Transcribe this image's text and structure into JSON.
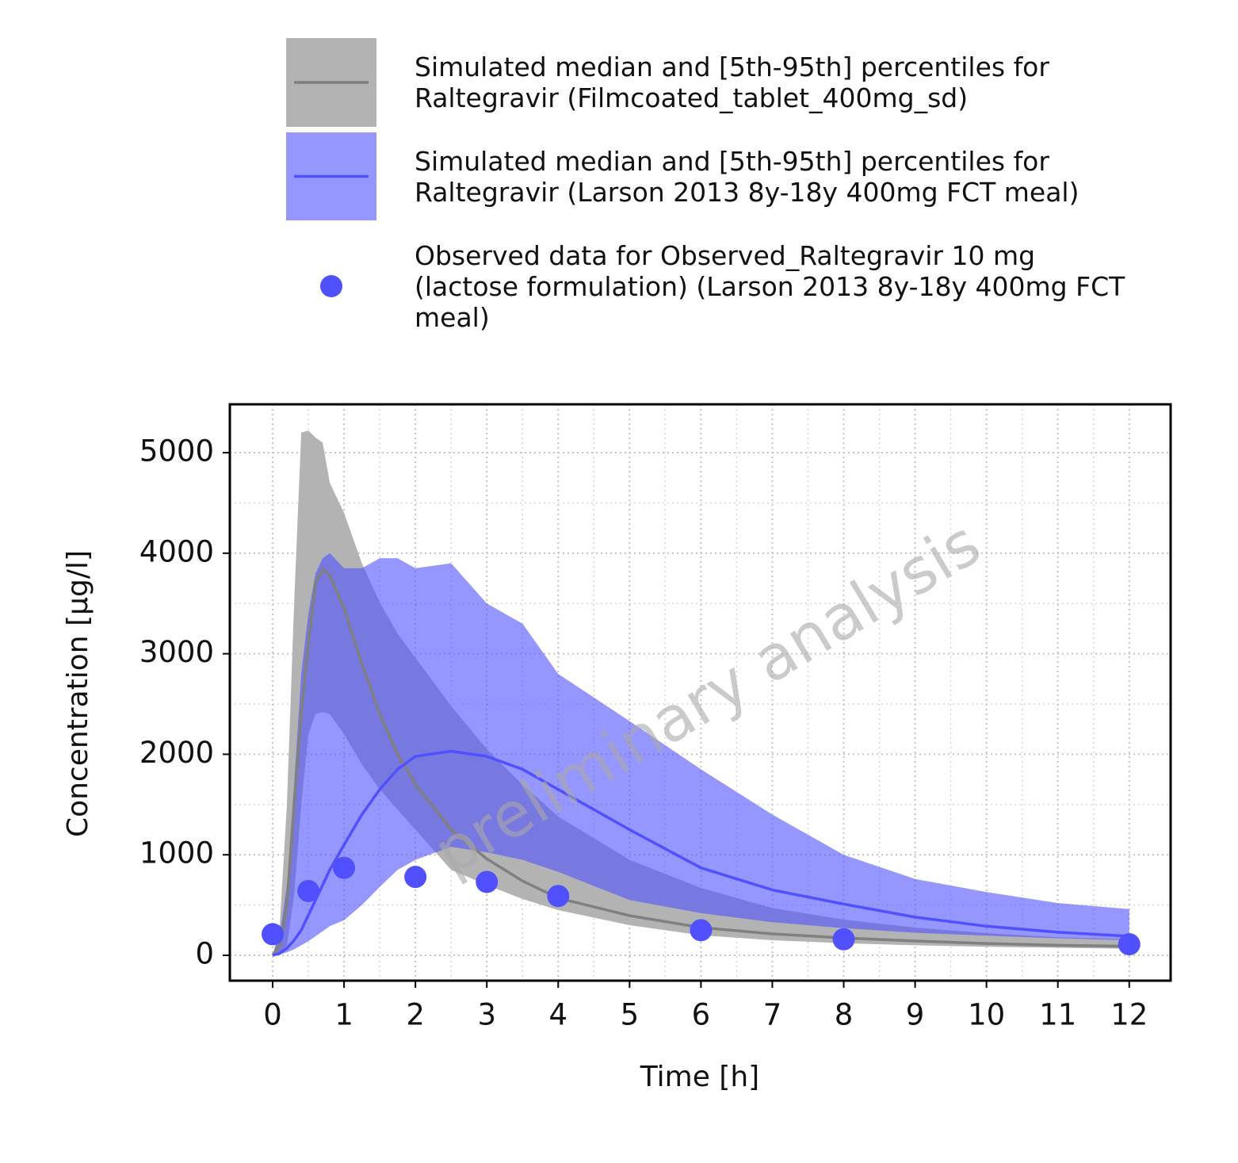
{
  "chart_data": {
    "type": "line",
    "xlabel": "Time [h]",
    "ylabel": "Concentration [µg/l]",
    "watermark": "preliminary analysis",
    "xlim": [
      -0.6,
      12.58
    ],
    "ylim": [
      -252,
      5481
    ],
    "xticks": [
      0,
      1,
      2,
      3,
      4,
      5,
      6,
      7,
      8,
      9,
      10,
      11,
      12
    ],
    "yticks": [
      0,
      1000,
      2000,
      3000,
      4000,
      5000
    ],
    "grid": true,
    "x": [
      0,
      0.1,
      0.2,
      0.3,
      0.4,
      0.5,
      0.6,
      0.7,
      0.8,
      1,
      1.25,
      1.5,
      1.75,
      2,
      2.5,
      3,
      3.5,
      4,
      5,
      6,
      7,
      8,
      9,
      10,
      11,
      12
    ],
    "series": [
      {
        "name": "Simulated median and [5th-95th] percentiles for Raltegravir (Filmcoated_tablet_400mg_sd)",
        "color": "#808080",
        "fill": "#b3b3b3",
        "values": [
          0,
          100,
          500,
          1500,
          2400,
          3100,
          3700,
          3840,
          3780,
          3450,
          2900,
          2400,
          2000,
          1700,
          1250,
          960,
          740,
          570,
          395,
          276,
          213,
          173,
          142,
          118,
          100,
          90
        ],
        "lower": [
          0,
          0,
          100,
          600,
          1500,
          2200,
          2400,
          2420,
          2400,
          2200,
          1900,
          1650,
          1450,
          1250,
          850,
          700,
          560,
          450,
          300,
          200,
          150,
          120,
          100,
          85,
          75,
          65
        ],
        "upper": [
          0,
          300,
          1500,
          3500,
          5200,
          5220,
          5150,
          5100,
          4700,
          4400,
          3900,
          3510,
          3200,
          2960,
          2480,
          2050,
          1700,
          1380,
          950,
          670,
          470,
          355,
          276,
          220,
          180,
          160
        ]
      },
      {
        "name": "Simulated median and [5th-95th] percentiles for Raltegravir (Larson 2013 8y-18y 400mg FCT meal)",
        "color": "#5050ff",
        "fill": "#5050ff",
        "values": [
          0,
          20,
          70,
          150,
          250,
          400,
          550,
          700,
          850,
          1100,
          1400,
          1650,
          1850,
          1980,
          2030,
          1980,
          1850,
          1650,
          1250,
          870,
          650,
          510,
          380,
          290,
          230,
          190
        ],
        "lower": [
          0,
          10,
          30,
          60,
          100,
          140,
          190,
          240,
          290,
          350,
          500,
          680,
          850,
          950,
          1080,
          1025,
          950,
          830,
          550,
          420,
          330,
          270,
          225,
          195,
          170,
          150
        ],
        "upper": [
          0,
          200,
          700,
          1700,
          2800,
          3400,
          3800,
          3950,
          4000,
          3850,
          3850,
          3950,
          3950,
          3850,
          3900,
          3500,
          3300,
          2800,
          2330,
          1850,
          1400,
          1000,
          760,
          630,
          520,
          460
        ]
      },
      {
        "name": "Observed data for Observed_Raltegravir 10 mg (lactose formulation) (Larson 2013 8y-18y 400mg FCT meal)",
        "color": "#5050ff",
        "type": "scatter",
        "x": [
          0,
          0.5,
          1,
          2,
          3,
          4,
          6,
          8,
          12
        ],
        "values": [
          210,
          640,
          870,
          780,
          730,
          590,
          250,
          160,
          110
        ]
      }
    ]
  }
}
